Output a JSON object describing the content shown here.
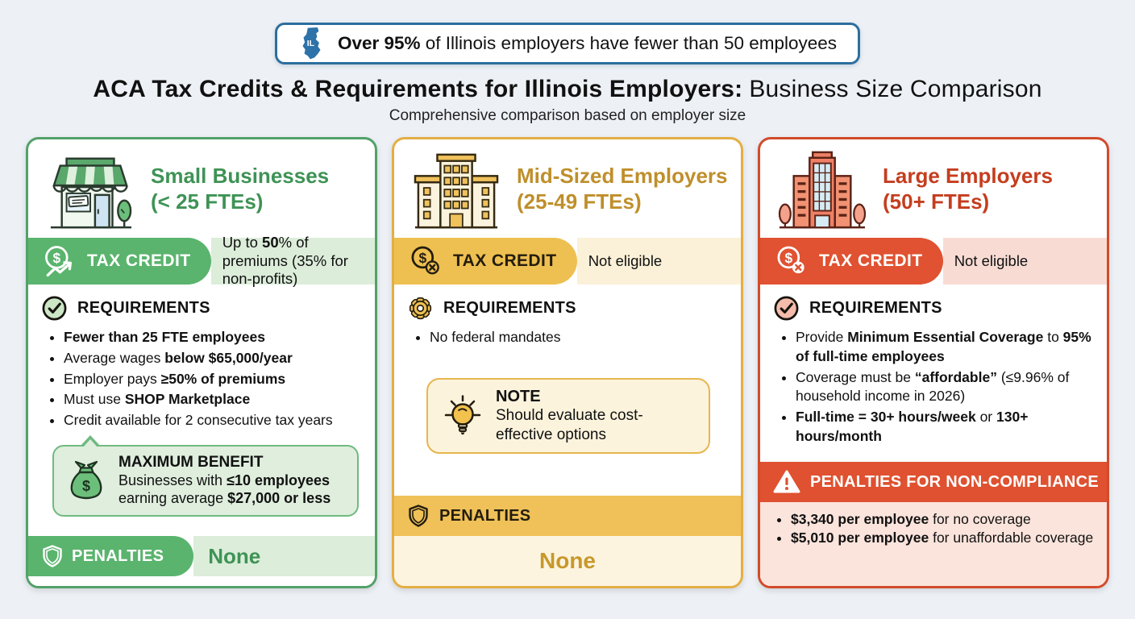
{
  "banner": {
    "state_abbr": "IL",
    "segments": [
      {
        "t": "Over 95%",
        "b": true
      },
      {
        "t": " of Illinois employers have fewer than 50 employees",
        "b": false
      }
    ]
  },
  "title": {
    "bold": "ACA Tax Credits & Requirements for Illinois Employers:",
    "regular": "Business Size Comparison",
    "subtitle": "Comprehensive comparison based on employer size"
  },
  "colors": {
    "banner_blue": "#2d6e9e",
    "green_accent": "#53a169",
    "gold_accent": "#e4ae44",
    "red_accent": "#d24b2b"
  },
  "cards": [
    {
      "title_line1": "Small Businesses",
      "title_line2": "(< 25 FTEs)",
      "tax_credit_label": "TAX CREDIT",
      "tax_credit_value": [
        {
          "t": "Up to ",
          "b": false
        },
        {
          "t": "50",
          "b": true
        },
        {
          "t": "% of premiums (35% for non-profits)",
          "b": false
        }
      ],
      "requirements_heading": "REQUIREMENTS",
      "bullets": [
        [
          {
            "t": "Fewer than 25 FTE employees",
            "b": true
          }
        ],
        [
          {
            "t": "Average wages ",
            "b": false
          },
          {
            "t": "below $65,000/year",
            "b": true
          }
        ],
        [
          {
            "t": "Employer pays ",
            "b": false
          },
          {
            "t": "≥50% of premiums",
            "b": true
          }
        ],
        [
          {
            "t": "Must use ",
            "b": false
          },
          {
            "t": "SHOP Marketplace",
            "b": true
          }
        ],
        [
          {
            "t": "Credit available for 2 consecutive tax years",
            "b": false
          }
        ]
      ],
      "benefit": {
        "heading": "MAXIMUM BENEFIT",
        "body": [
          {
            "t": "Businesses with ",
            "b": false
          },
          {
            "t": "≤10 employees",
            "b": true
          },
          {
            "t": " earning average ",
            "b": false
          },
          {
            "t": "$27,000 or less",
            "b": true
          }
        ]
      },
      "penalties_label": "PENALTIES",
      "penalties_value": "None"
    },
    {
      "title_line1": "Mid-Sized Employers",
      "title_line2": "(25-49 FTEs)",
      "tax_credit_label": "TAX CREDIT",
      "tax_credit_value": [
        {
          "t": "Not eligible",
          "b": false
        }
      ],
      "requirements_heading": "REQUIREMENTS",
      "bullets": [
        [
          {
            "t": "No federal mandates",
            "b": false
          }
        ]
      ],
      "note": {
        "heading": "NOTE",
        "body": [
          {
            "t": "Should evaluate cost-effective options",
            "b": false
          }
        ]
      },
      "penalties_label": "PENALTIES",
      "penalties_value": "None"
    },
    {
      "title_line1": "Large Employers",
      "title_line2": "(50+ FTEs)",
      "tax_credit_label": "TAX CREDIT",
      "tax_credit_value": [
        {
          "t": "Not eligible",
          "b": false
        }
      ],
      "requirements_heading": "REQUIREMENTS",
      "bullets": [
        [
          {
            "t": "Provide ",
            "b": false
          },
          {
            "t": "Minimum Essential Coverage",
            "b": true
          },
          {
            "t": " to ",
            "b": false
          },
          {
            "t": "95% of full-time employees",
            "b": true
          }
        ],
        [
          {
            "t": "Coverage must be ",
            "b": false
          },
          {
            "t": "“affordable”",
            "b": true
          },
          {
            "t": " (≤9.96% of household income in 2026)",
            "b": false
          }
        ],
        [
          {
            "t": "Full-time = 30+ hours/week",
            "b": true
          },
          {
            "t": " or ",
            "b": false
          },
          {
            "t": "130+ hours/month",
            "b": true
          }
        ]
      ],
      "penalties_label": "PENALTIES FOR NON-COMPLIANCE",
      "penalty_bullets": [
        [
          {
            "t": "$3,340 per employee",
            "b": true
          },
          {
            "t": " for no coverage",
            "b": false
          }
        ],
        [
          {
            "t": "$5,010 per employee",
            "b": true
          },
          {
            "t": " for unaffordable coverage",
            "b": false
          }
        ]
      ]
    }
  ]
}
